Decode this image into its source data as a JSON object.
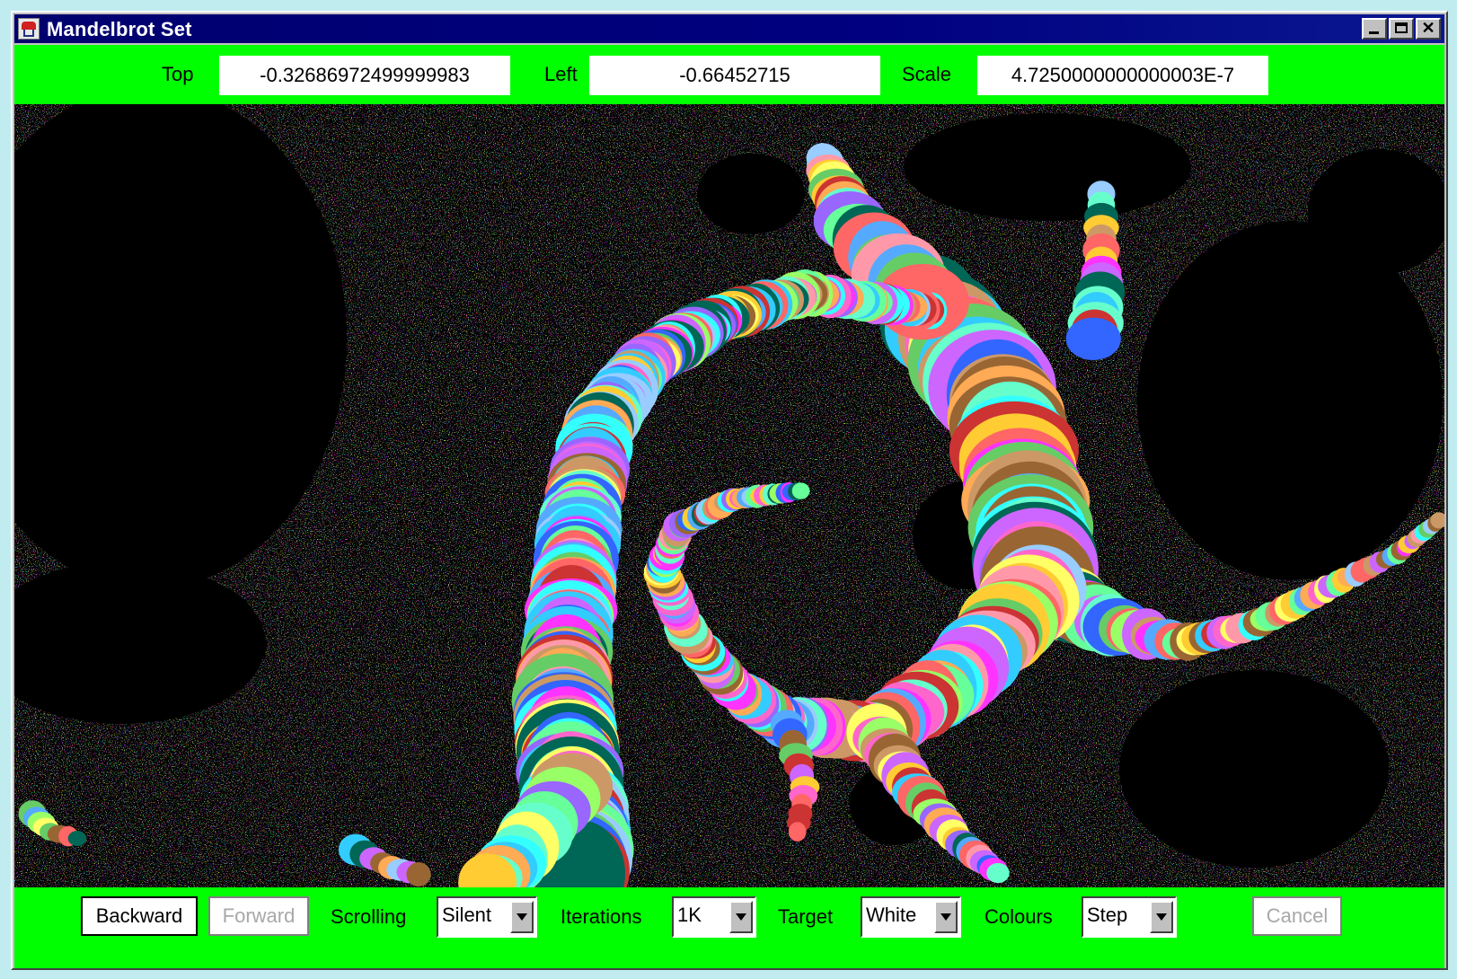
{
  "window": {
    "title": "Mandelbrot Set"
  },
  "coords": {
    "top_label": "Top",
    "top_value": "-0.32686972499999983",
    "left_label": "Left",
    "left_value": "-0.66452715",
    "scale_label": "Scale",
    "scale_value": "4.7250000000000003E-7"
  },
  "controls": {
    "backward_label": "Backward",
    "forward_label": "Forward",
    "scrolling_label": "Scrolling",
    "scrolling_value": "Silent",
    "iterations_label": "Iterations",
    "iterations_value": "1K",
    "target_label": "Target",
    "target_value": "White",
    "colours_label": "Colours",
    "colours_value": "Step",
    "cancel_label": "Cancel"
  },
  "colors": {
    "panel_green": "#00ff00",
    "titlebar_blue": "#000080",
    "canvas_black": "#000000"
  }
}
